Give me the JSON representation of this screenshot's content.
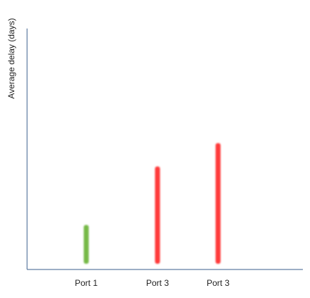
{
  "chart_data": {
    "type": "bar",
    "title": "",
    "xlabel": "",
    "ylabel": "Average delay (days)",
    "categories": [
      "Port 1",
      "Port 3",
      "Port 3"
    ],
    "values": [
      0.16,
      0.41,
      0.51
    ],
    "ylim": [
      0,
      1
    ],
    "grid": false,
    "legend": "none",
    "bar_colors": [
      "#76b947",
      "#ff3b3b",
      "#ff3b3b"
    ],
    "axis_color": "#3b5f8c"
  }
}
